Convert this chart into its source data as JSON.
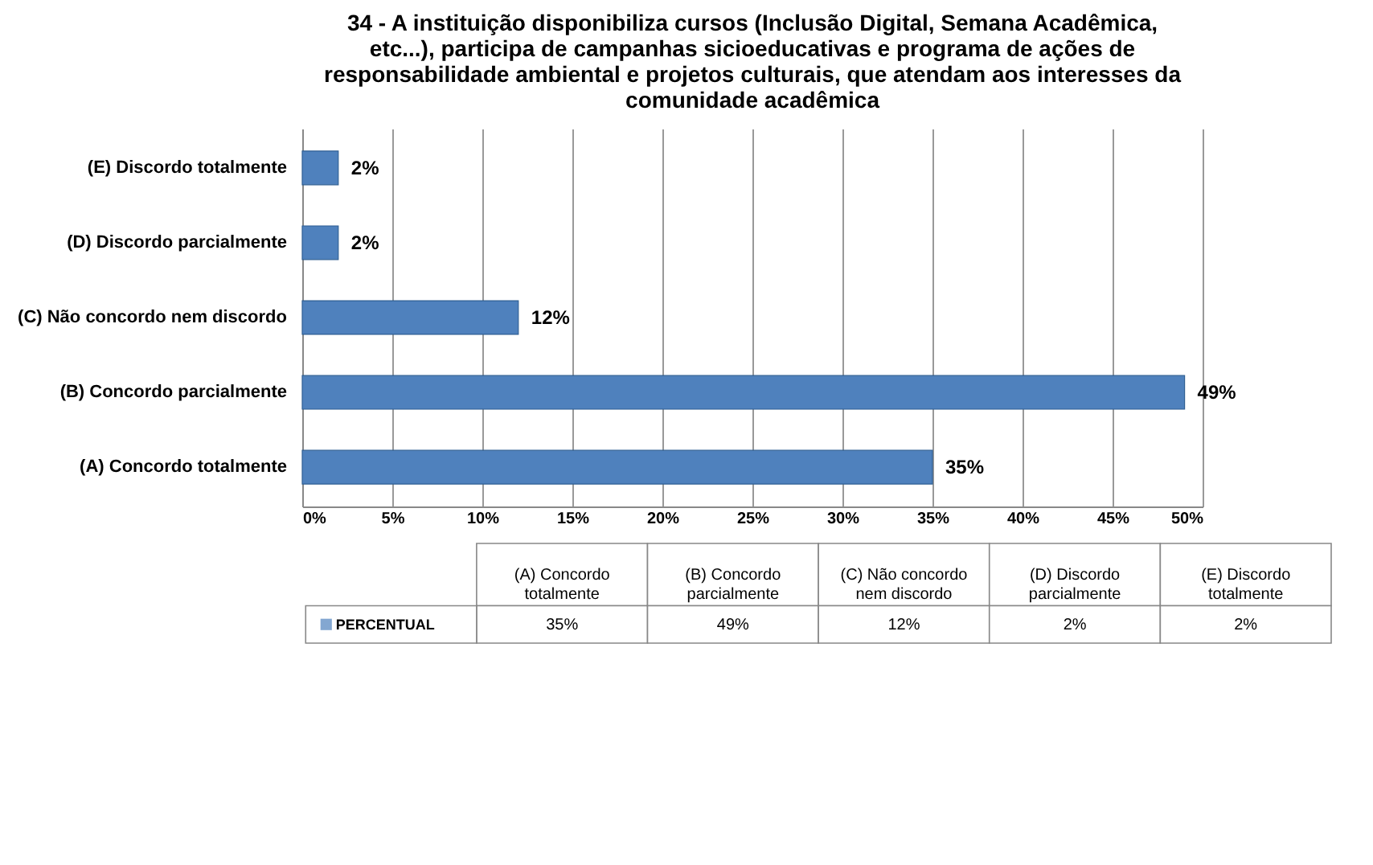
{
  "chart_data": {
    "type": "bar",
    "orientation": "horizontal",
    "title": "34 - A instituição disponibiliza cursos (Inclusão Digital, Semana Acadêmica, etc...), participa de campanhas sicioeducativas e programa de ações de responsabilidade ambiental e projetos culturais, que atendam aos interesses da comunidade acadêmica",
    "categories": [
      "(E) Discordo totalmente",
      "(D) Discordo parcialmente",
      "(C) Não concordo nem discordo",
      "(B) Concordo parcialmente",
      "(A) Concordo totalmente"
    ],
    "series": [
      {
        "name": "PERCENTUAL",
        "color": "#4f81bd",
        "values": [
          2,
          2,
          12,
          49,
          35
        ],
        "value_labels": [
          "2%",
          "2%",
          "12%",
          "49%",
          "35%"
        ]
      }
    ],
    "xlim": [
      0,
      50
    ],
    "xticks": [
      {
        "value": 0,
        "label": "0%"
      },
      {
        "value": 5,
        "label": "5%"
      },
      {
        "value": 10,
        "label": "10%"
      },
      {
        "value": 15,
        "label": "15%"
      },
      {
        "value": 20,
        "label": "20%"
      },
      {
        "value": 25,
        "label": "25%"
      },
      {
        "value": 30,
        "label": "30%"
      },
      {
        "value": 35,
        "label": "35%"
      },
      {
        "value": 40,
        "label": "40%"
      },
      {
        "value": 45,
        "label": "45%"
      },
      {
        "value": 50,
        "label": "50%"
      }
    ],
    "grid": "x",
    "legend": "bottom"
  }
}
